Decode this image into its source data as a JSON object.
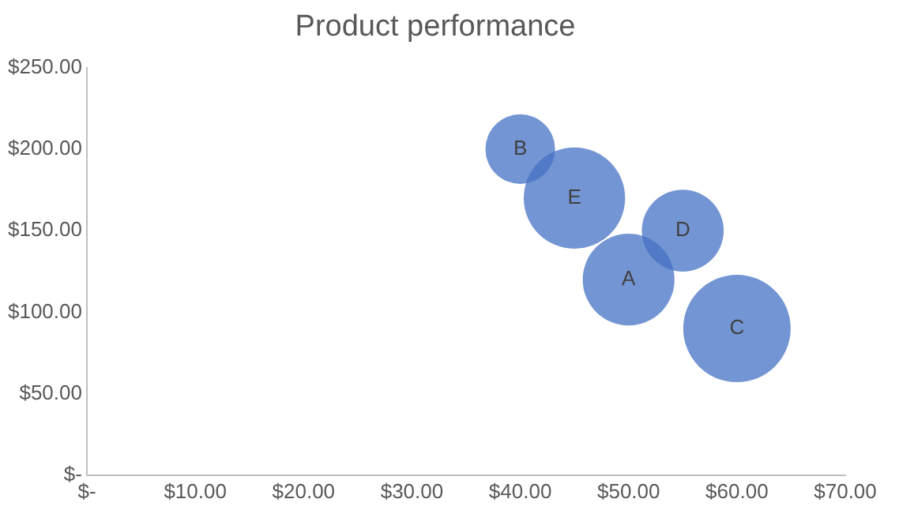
{
  "chart_data": {
    "type": "bubble",
    "title": "Product performance",
    "x": [
      50,
      40,
      60,
      55,
      45
    ],
    "values": [
      120,
      200,
      90,
      150,
      170
    ],
    "sizes": [
      0.73,
      0.42,
      1,
      0.58,
      0.89
    ],
    "value_labels": [
      "A",
      "B",
      "C",
      "D",
      "E"
    ],
    "color": "#4472c4",
    "xlim": [
      0,
      70
    ],
    "xticks": [
      {
        "value": 0,
        "label": "$-"
      },
      {
        "value": 10,
        "label": "$10.00"
      },
      {
        "value": 20,
        "label": "$20.00"
      },
      {
        "value": 30,
        "label": "$30.00"
      },
      {
        "value": 40,
        "label": "$40.00"
      },
      {
        "value": 50,
        "label": "$50.00"
      },
      {
        "value": 60,
        "label": "$60.00"
      },
      {
        "value": 70,
        "label": "$70.00"
      }
    ],
    "ylim": [
      0,
      250
    ],
    "yticks": [
      {
        "value": 0,
        "label": "$-"
      },
      {
        "value": 50,
        "label": "$50.00"
      },
      {
        "value": 100,
        "label": "$100.00"
      },
      {
        "value": 150,
        "label": "$150.00"
      },
      {
        "value": 200,
        "label": "$200.00"
      },
      {
        "value": 250,
        "label": "$250.00"
      }
    ],
    "grid": false,
    "legend": false
  }
}
